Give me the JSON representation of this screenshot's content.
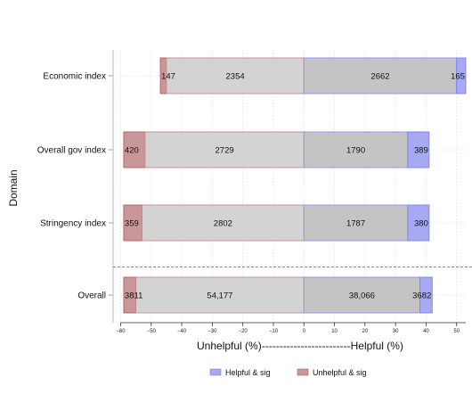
{
  "chart_data": {
    "type": "bar",
    "orientation": "horizontal",
    "stacked": "diverging",
    "categories": [
      "Economic index",
      "Overall gov index",
      "Stringency index",
      "Overall"
    ],
    "separator_before_category": "Overall",
    "series": [
      {
        "name": "Unhelpful & sig",
        "color": "#c99799",
        "edge": "#b15c61",
        "from": [
          -47,
          -59,
          -59,
          -59
        ],
        "to": [
          -45,
          -52,
          -53,
          -55
        ],
        "labels": [
          "147",
          "420",
          "359",
          "3811"
        ]
      },
      {
        "color": "#d3d3d3",
        "edge": "#c8888b",
        "from": [
          -45,
          -52,
          -53,
          -55
        ],
        "to": [
          0,
          0,
          0,
          0
        ],
        "labels": [
          "2354",
          "2729",
          "2802",
          "54,177"
        ]
      },
      {
        "color": "#c4c4c4",
        "edge": "#8f8ff0",
        "from": [
          0,
          0,
          0,
          0
        ],
        "to": [
          50,
          34,
          34,
          38
        ],
        "labels": [
          "2662",
          "1790",
          "1787",
          "38,066"
        ]
      },
      {
        "name": "Helpful & sig",
        "color": "#a7a9f3",
        "edge": "#7d80ee",
        "from": [
          50,
          34,
          34,
          38
        ],
        "to": [
          53,
          41,
          41,
          42
        ],
        "labels": [
          "165",
          "389",
          "380",
          "3682"
        ]
      }
    ],
    "xlim": [
      -60,
      53
    ],
    "xticks": [
      -60,
      -50,
      -40,
      -30,
      -20,
      -10,
      0,
      10,
      20,
      30,
      40,
      50
    ],
    "xlabel": "Unhelpful (%)-------------------------Helpful (%)",
    "ylabel": "Domain",
    "grid": true,
    "legend": {
      "position": "bottom",
      "entries": [
        "Helpful & sig",
        "Unhelpful & sig"
      ]
    }
  }
}
